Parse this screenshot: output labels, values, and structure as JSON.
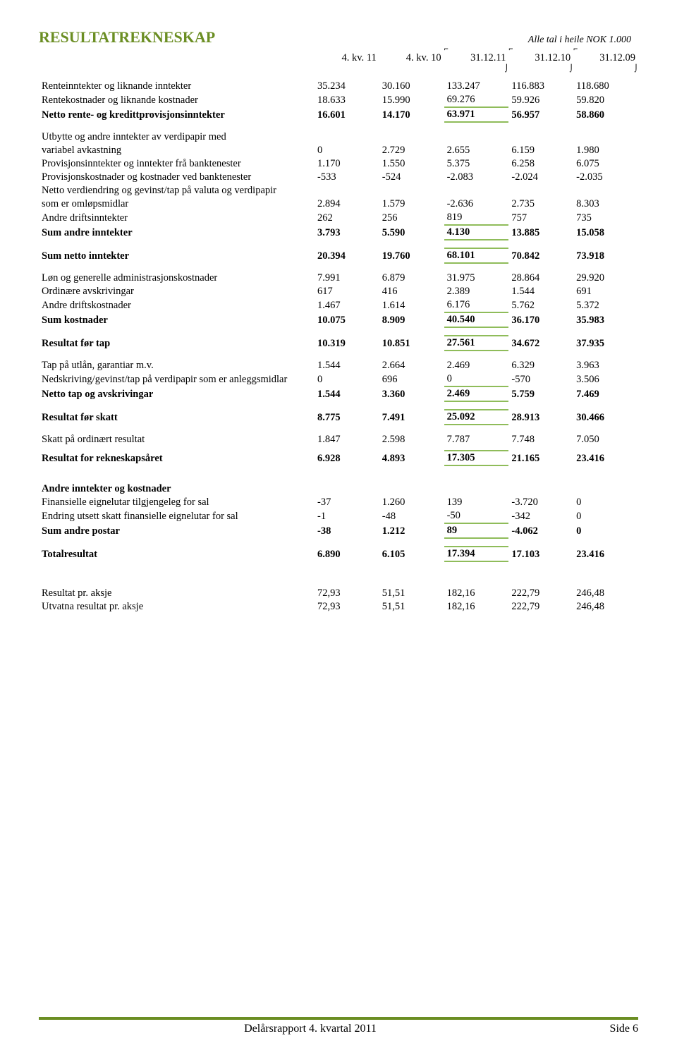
{
  "title": "RESULTATREKNESKAP",
  "subtitle": "Alle tal i heile NOK 1.000",
  "periods": [
    "4. kv. 11",
    "4. kv. 10",
    "31.12.11",
    "31.12.10",
    "31.12.09"
  ],
  "rows": [
    {
      "label": "Renteinntekter og liknande inntekter",
      "v": [
        "35.234",
        "30.160",
        "133.247",
        "116.883",
        "118.680"
      ]
    },
    {
      "label": "Rentekostnader og liknande kostnader",
      "v": [
        "18.633",
        "15.990",
        "69.276",
        "59.926",
        "59.820"
      ]
    }
  ],
  "netto_rente": {
    "label": "Netto rente- og kredittprovisjonsinntekter",
    "v": [
      "16.601",
      "14.170",
      "63.971",
      "56.957",
      "58.860"
    ]
  },
  "block2": [
    {
      "label": "Utbytte og andre inntekter av verdipapir med",
      "v": [
        "",
        "",
        "",
        "",
        ""
      ]
    },
    {
      "label": "variabel avkastning",
      "v": [
        "0",
        "2.729",
        "2.655",
        "6.159",
        "1.980"
      ]
    },
    {
      "label": "Provisjonsinntekter og inntekter frå banktenester",
      "v": [
        "1.170",
        "1.550",
        "5.375",
        "6.258",
        "6.075"
      ]
    },
    {
      "label": "Provisjonskostnader og kostnader ved banktenester",
      "v": [
        "-533",
        "-524",
        "-2.083",
        "-2.024",
        "-2.035"
      ]
    },
    {
      "label": "Netto verdiendring og gevinst/tap på valuta og verdipapir",
      "v": [
        "",
        "",
        "",
        "",
        ""
      ]
    },
    {
      "label": "som er omløpsmidlar",
      "v": [
        "2.894",
        "1.579",
        "-2.636",
        "2.735",
        "8.303"
      ]
    },
    {
      "label": "Andre driftsinntekter",
      "v": [
        "262",
        "256",
        "819",
        "757",
        "735"
      ]
    }
  ],
  "sum_andre_innt": {
    "label": "Sum andre inntekter",
    "v": [
      "3.793",
      "5.590",
      "4.130",
      "13.885",
      "15.058"
    ]
  },
  "sum_netto_innt": {
    "label": "Sum netto inntekter",
    "v": [
      "20.394",
      "19.760",
      "68.101",
      "70.842",
      "73.918"
    ]
  },
  "block3": [
    {
      "label": "Løn og generelle administrasjonskostnader",
      "v": [
        "7.991",
        "6.879",
        "31.975",
        "28.864",
        "29.920"
      ]
    },
    {
      "label": "Ordinære avskrivingar",
      "v": [
        "617",
        "416",
        "2.389",
        "1.544",
        "691"
      ]
    },
    {
      "label": "Andre driftskostnader",
      "v": [
        "1.467",
        "1.614",
        "6.176",
        "5.762",
        "5.372"
      ]
    }
  ],
  "sum_kostnader": {
    "label": "Sum  kostnader",
    "v": [
      "10.075",
      "8.909",
      "40.540",
      "36.170",
      "35.983"
    ]
  },
  "resultat_for_tap": {
    "label": "Resultat før tap",
    "v": [
      "10.319",
      "10.851",
      "27.561",
      "34.672",
      "37.935"
    ]
  },
  "block4": [
    {
      "label": "Tap på utlån, garantiar m.v.",
      "v": [
        "1.544",
        "2.664",
        "2.469",
        "6.329",
        "3.963"
      ]
    },
    {
      "label": "Nedskriving/gevinst/tap  på verdipapir som er anleggsmidlar",
      "v": [
        "0",
        "696",
        "0",
        "-570",
        "3.506"
      ]
    }
  ],
  "netto_tap": {
    "label": "Netto tap og avskrivingar",
    "v": [
      "1.544",
      "3.360",
      "2.469",
      "5.759",
      "7.469"
    ]
  },
  "resultat_for_skatt": {
    "label": "Resultat før skatt",
    "v": [
      "8.775",
      "7.491",
      "25.092",
      "28.913",
      "30.466"
    ]
  },
  "skatt": {
    "label": "Skatt på ordinært resultat",
    "v": [
      "1.847",
      "2.598",
      "7.787",
      "7.748",
      "7.050"
    ]
  },
  "resultat_aar": {
    "label": "Resultat for rekneskapsåret",
    "v": [
      "6.928",
      "4.893",
      "17.305",
      "21.165",
      "23.416"
    ]
  },
  "andre_header": "Andre inntekter og kostnader",
  "block5": [
    {
      "label": "Finansielle eignelutar tilgjengeleg for sal",
      "v": [
        "-37",
        "1.260",
        "139",
        "-3.720",
        "0"
      ]
    },
    {
      "label": "Endring utsett skatt finansielle eignelutar for sal",
      "v": [
        "-1",
        "-48",
        "-50",
        "-342",
        "0"
      ]
    }
  ],
  "sum_andre_postar": {
    "label": "Sum andre postar",
    "v": [
      "-38",
      "1.212",
      "89",
      "-4.062",
      "0"
    ]
  },
  "totalresultat": {
    "label": "Totalresultat",
    "v": [
      "6.890",
      "6.105",
      "17.394",
      "17.103",
      "23.416"
    ]
  },
  "per_share": [
    {
      "label": "Resultat pr. aksje",
      "v": [
        "72,93",
        "51,51",
        "182,16",
        "222,79",
        "246,48"
      ]
    },
    {
      "label": "Utvatna resultat pr. aksje",
      "v": [
        "72,93",
        "51,51",
        "182,16",
        "222,79",
        "246,48"
      ]
    }
  ],
  "footer": {
    "left": "Delårsrapport 4. kvartal 2011",
    "right": "Side 6"
  }
}
